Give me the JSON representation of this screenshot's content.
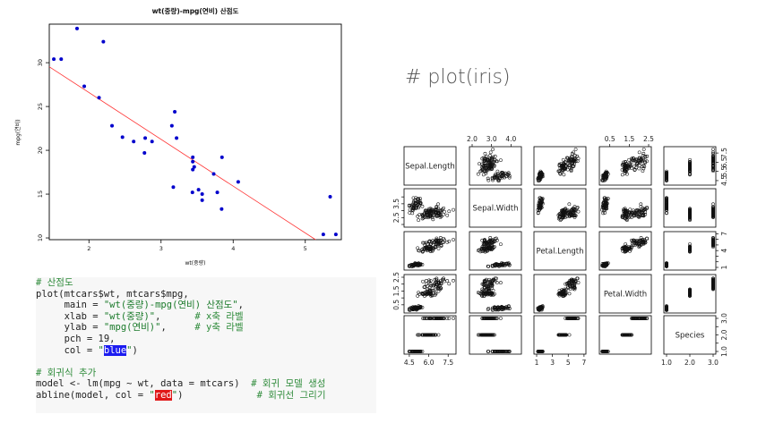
{
  "scatter": {
    "title": "wt(중량)-mpg(연비) 산점도",
    "xlabel": "wt(중량)",
    "ylabel": "mpg(연비)",
    "xticks": [
      "2",
      "3",
      "4",
      "5"
    ],
    "yticks": [
      "10",
      "15",
      "20",
      "25",
      "30"
    ]
  },
  "chart_data": [
    {
      "type": "scatter",
      "title": "wt(중량)-mpg(연비) 산점도",
      "xlabel": "wt(중량)",
      "ylabel": "mpg(연비)",
      "xlim": [
        1.45,
        5.5
      ],
      "ylim": [
        9.8,
        34.4
      ],
      "point_color": "#0000cc",
      "line_color": "#ff3333",
      "x": [
        2.62,
        2.875,
        2.32,
        3.215,
        3.44,
        3.46,
        3.57,
        3.19,
        3.15,
        3.44,
        3.44,
        4.07,
        3.73,
        3.78,
        5.25,
        5.424,
        5.345,
        2.2,
        1.615,
        1.835,
        2.465,
        3.52,
        3.435,
        3.84,
        3.845,
        1.935,
        2.14,
        1.513,
        3.17,
        2.77,
        3.57,
        2.78
      ],
      "y": [
        21.0,
        21.0,
        22.8,
        21.4,
        18.7,
        18.1,
        14.3,
        24.4,
        22.8,
        19.2,
        17.8,
        16.4,
        17.3,
        15.2,
        10.4,
        10.4,
        14.7,
        32.4,
        30.4,
        33.9,
        21.5,
        15.5,
        15.2,
        13.3,
        19.2,
        27.3,
        26.0,
        30.4,
        15.8,
        19.7,
        15.0,
        21.4
      ],
      "regression": {
        "intercept": 37.285,
        "slope": -5.344
      }
    },
    {
      "type": "scatter-matrix",
      "title": "# plot(iris)",
      "variables": [
        "Sepal.Length",
        "Sepal.Width",
        "Petal.Length",
        "Petal.Width",
        "Species"
      ],
      "ranges": [
        [
          4.3,
          7.9
        ],
        [
          2.0,
          4.4
        ],
        [
          1.0,
          6.9
        ],
        [
          0.1,
          2.5
        ],
        [
          1,
          3
        ]
      ],
      "ticks": [
        [
          "4.5",
          "6.0",
          "7.5"
        ],
        [
          "2.0",
          "3.0",
          "4.0"
        ],
        [
          "1",
          "3",
          "5",
          "7"
        ],
        [
          "0.5",
          "1.5",
          "2.5"
        ],
        [
          "1.0",
          "2.0",
          "3.0"
        ]
      ],
      "row_ticks": [
        [
          "4.5",
          "5.5",
          "6.5",
          "7.5"
        ],
        [
          "2.0",
          "2.5",
          "3.0",
          "3.5",
          "4.0"
        ],
        [
          "1",
          "2",
          "3",
          "4",
          "5",
          "6",
          "7"
        ],
        [
          "0.5",
          "1.0",
          "1.5",
          "2.0",
          "2.5"
        ],
        [
          "1.0",
          "1.5",
          "2.0",
          "2.5",
          "3.0"
        ]
      ],
      "row_tick_labels": [
        [
          "4.5",
          "5.5",
          "6.5",
          "7.5"
        ],
        [
          "2.5",
          "3.5"
        ],
        [
          "1",
          "4",
          "7"
        ],
        [
          "0.5",
          "1.5",
          "2.5"
        ],
        [
          "1.0",
          "2.0",
          "3.0"
        ]
      ]
    }
  ],
  "code": {
    "lines": [
      [
        {
          "t": "# 산점도",
          "c": "cmt"
        }
      ],
      [
        {
          "t": "plot(mtcars$wt, mtcars$mpg,",
          "c": ""
        }
      ],
      [
        {
          "t": "     main = ",
          "c": ""
        },
        {
          "t": "\"wt(중량)-mpg(연비) 산점도\"",
          "c": "str"
        },
        {
          "t": ",",
          "c": ""
        }
      ],
      [
        {
          "t": "     xlab = ",
          "c": ""
        },
        {
          "t": "\"wt(중량)\"",
          "c": "str"
        },
        {
          "t": ",      ",
          "c": ""
        },
        {
          "t": "# x축 라벨",
          "c": "cmt"
        }
      ],
      [
        {
          "t": "     ylab = ",
          "c": ""
        },
        {
          "t": "\"mpg(연비)\"",
          "c": "str"
        },
        {
          "t": ",     ",
          "c": ""
        },
        {
          "t": "# y축 라벨",
          "c": "cmt"
        }
      ],
      [
        {
          "t": "     pch = 19,",
          "c": ""
        }
      ],
      [
        {
          "t": "     col = ",
          "c": ""
        },
        {
          "t": "\"",
          "c": "str"
        },
        {
          "t": "blue",
          "c": "hl-blue"
        },
        {
          "t": "\"",
          "c": "str"
        },
        {
          "t": ")",
          "c": ""
        }
      ],
      [
        {
          "t": "",
          "c": ""
        }
      ],
      [
        {
          "t": "# 회귀식 추가",
          "c": "cmt"
        }
      ],
      [
        {
          "t": "model <- lm(mpg ~ wt, data = mtcars)  ",
          "c": ""
        },
        {
          "t": "# 회귀 모델 생성",
          "c": "cmt"
        }
      ],
      [
        {
          "t": "abline(model, col = ",
          "c": ""
        },
        {
          "t": "\"",
          "c": "str"
        },
        {
          "t": "red",
          "c": "hl-red"
        },
        {
          "t": "\"",
          "c": "str"
        },
        {
          "t": ")             ",
          "c": ""
        },
        {
          "t": "# 회귀선 그리기",
          "c": "cmt"
        }
      ]
    ]
  },
  "iris_title": "# plot(iris)"
}
